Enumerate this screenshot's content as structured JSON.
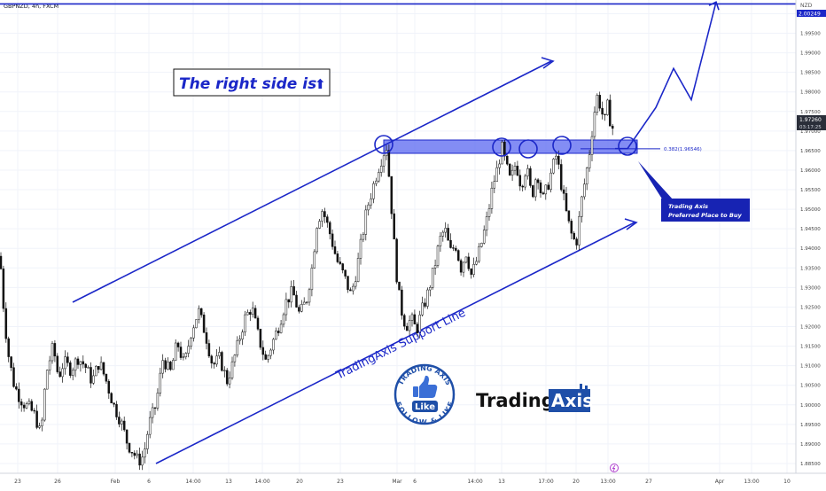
{
  "header": {
    "symbol_line": "GBPNZD, 4h, FXCM",
    "currency_label": "NZD"
  },
  "chart_data": {
    "type": "candlestick",
    "title": "GBPNZD, 4h, FXCM",
    "ylim": [
      1.8825,
      2.0035
    ],
    "y_ticks": [
      "1.88500",
      "1.89000",
      "1.89500",
      "1.90000",
      "1.90500",
      "1.91000",
      "1.91500",
      "1.92000",
      "1.92500",
      "1.93000",
      "1.93500",
      "1.94000",
      "1.94500",
      "1.95000",
      "1.95500",
      "1.96000",
      "1.96500",
      "1.97000",
      "1.97500",
      "1.98000",
      "1.98500",
      "1.99000",
      "1.99500",
      "2.00000"
    ],
    "x_ticks": [
      "23",
      "26",
      "Feb",
      "6",
      "14:00",
      "13",
      "14:00",
      "20",
      "23",
      "Mar",
      "6",
      "14:00",
      "13",
      "17:00",
      "20",
      "13:00",
      "27",
      "Apr",
      "13:00",
      "10"
    ],
    "current_price": "1.97260",
    "countdown": "03:17:25",
    "top_line_price": 2.0025,
    "top_line_label": "2.00249",
    "fib_level": {
      "label": "0.382(1.96546)",
      "price": 1.96546
    },
    "zone": {
      "low": 1.9643,
      "high": 1.9677
    },
    "close_path": [
      [
        0,
        1.938
      ],
      [
        5,
        1.922
      ],
      [
        10,
        1.912
      ],
      [
        16,
        1.905
      ],
      [
        22,
        1.902
      ],
      [
        28,
        1.9
      ],
      [
        34,
        1.899
      ],
      [
        40,
        1.897
      ],
      [
        46,
        1.892
      ],
      [
        52,
        1.908
      ],
      [
        60,
        1.915
      ],
      [
        66,
        1.907
      ],
      [
        72,
        1.911
      ],
      [
        80,
        1.909
      ],
      [
        88,
        1.912
      ],
      [
        96,
        1.91
      ],
      [
        104,
        1.906
      ],
      [
        112,
        1.911
      ],
      [
        120,
        1.906
      ],
      [
        128,
        1.9
      ],
      [
        136,
        1.896
      ],
      [
        144,
        1.89
      ],
      [
        150,
        1.888
      ],
      [
        156,
        1.8855
      ],
      [
        162,
        1.887
      ],
      [
        168,
        1.895
      ],
      [
        176,
        1.9
      ],
      [
        184,
        1.912
      ],
      [
        192,
        1.908
      ],
      [
        200,
        1.916
      ],
      [
        208,
        1.91
      ],
      [
        216,
        1.919
      ],
      [
        224,
        1.924
      ],
      [
        232,
        1.918
      ],
      [
        240,
        1.91
      ],
      [
        248,
        1.912
      ],
      [
        256,
        1.906
      ],
      [
        262,
        1.91
      ],
      [
        268,
        1.915
      ],
      [
        276,
        1.922
      ],
      [
        284,
        1.925
      ],
      [
        292,
        1.917
      ],
      [
        300,
        1.911
      ],
      [
        306,
        1.915
      ],
      [
        314,
        1.92
      ],
      [
        322,
        1.926
      ],
      [
        330,
        1.929
      ],
      [
        338,
        1.923
      ],
      [
        346,
        1.927
      ],
      [
        352,
        1.935
      ],
      [
        358,
        1.947
      ],
      [
        364,
        1.95
      ],
      [
        372,
        1.944
      ],
      [
        380,
        1.937
      ],
      [
        388,
        1.933
      ],
      [
        396,
        1.928
      ],
      [
        402,
        1.934
      ],
      [
        408,
        1.942
      ],
      [
        414,
        1.95
      ],
      [
        420,
        1.955
      ],
      [
        426,
        1.96
      ],
      [
        432,
        1.964
      ],
      [
        436,
        1.966
      ],
      [
        440,
        1.956
      ],
      [
        444,
        1.943
      ],
      [
        448,
        1.932
      ],
      [
        452,
        1.925
      ],
      [
        458,
        1.92
      ],
      [
        464,
        1.922
      ],
      [
        470,
        1.919
      ],
      [
        476,
        1.924
      ],
      [
        482,
        1.928
      ],
      [
        490,
        1.935
      ],
      [
        496,
        1.942
      ],
      [
        502,
        1.945
      ],
      [
        508,
        1.939
      ],
      [
        514,
        1.941
      ],
      [
        520,
        1.935
      ],
      [
        526,
        1.939
      ],
      [
        532,
        1.933
      ],
      [
        538,
        1.937
      ],
      [
        544,
        1.942
      ],
      [
        550,
        1.948
      ],
      [
        556,
        1.956
      ],
      [
        562,
        1.961
      ],
      [
        566,
        1.966
      ],
      [
        570,
        1.962
      ],
      [
        576,
        1.957
      ],
      [
        582,
        1.962
      ],
      [
        588,
        1.956
      ],
      [
        594,
        1.961
      ],
      [
        600,
        1.953
      ],
      [
        606,
        1.96
      ],
      [
        612,
        1.952
      ],
      [
        618,
        1.956
      ],
      [
        624,
        1.961
      ],
      [
        628,
        1.964
      ],
      [
        632,
        1.958
      ],
      [
        638,
        1.95
      ],
      [
        644,
        1.944
      ],
      [
        650,
        1.941
      ],
      [
        656,
        1.952
      ],
      [
        662,
        1.96
      ],
      [
        666,
        1.966
      ],
      [
        670,
        1.974
      ],
      [
        674,
        1.979
      ],
      [
        678,
        1.976
      ],
      [
        682,
        1.972
      ],
      [
        686,
        1.977
      ],
      [
        690,
        1.97
      ],
      [
        694,
        1.9726
      ]
    ],
    "projection_path": [
      [
        694,
        1.9655
      ],
      [
        708,
        1.9655
      ],
      [
        740,
        1.976
      ],
      [
        760,
        1.986
      ],
      [
        780,
        1.978
      ],
      [
        808,
        2.003
      ]
    ],
    "annotations": {
      "headline": "The right side is",
      "headline_arrow": "⬆",
      "support_label": "TradingAxis Support Line",
      "callout": [
        "Trading Axis",
        "Preferred Place to Buy"
      ]
    }
  },
  "branding": {
    "badge_top": "TRADING AXIS",
    "badge_bottom": "FOLLOW & LIKE",
    "badge_center": "Like",
    "logo_word": "Trading",
    "logo_box": "Axis"
  },
  "colors": {
    "up": "#26a69a",
    "down": "#ef5350",
    "candle": "#111111",
    "accent": "#1b27c8",
    "zone": "#4f5cf0",
    "grid": "#f0f3fa",
    "callout_bg": "#1723b3"
  },
  "icons": {
    "thumbs_up": "thumbs-up-icon",
    "event_marker": "lightning-icon"
  }
}
